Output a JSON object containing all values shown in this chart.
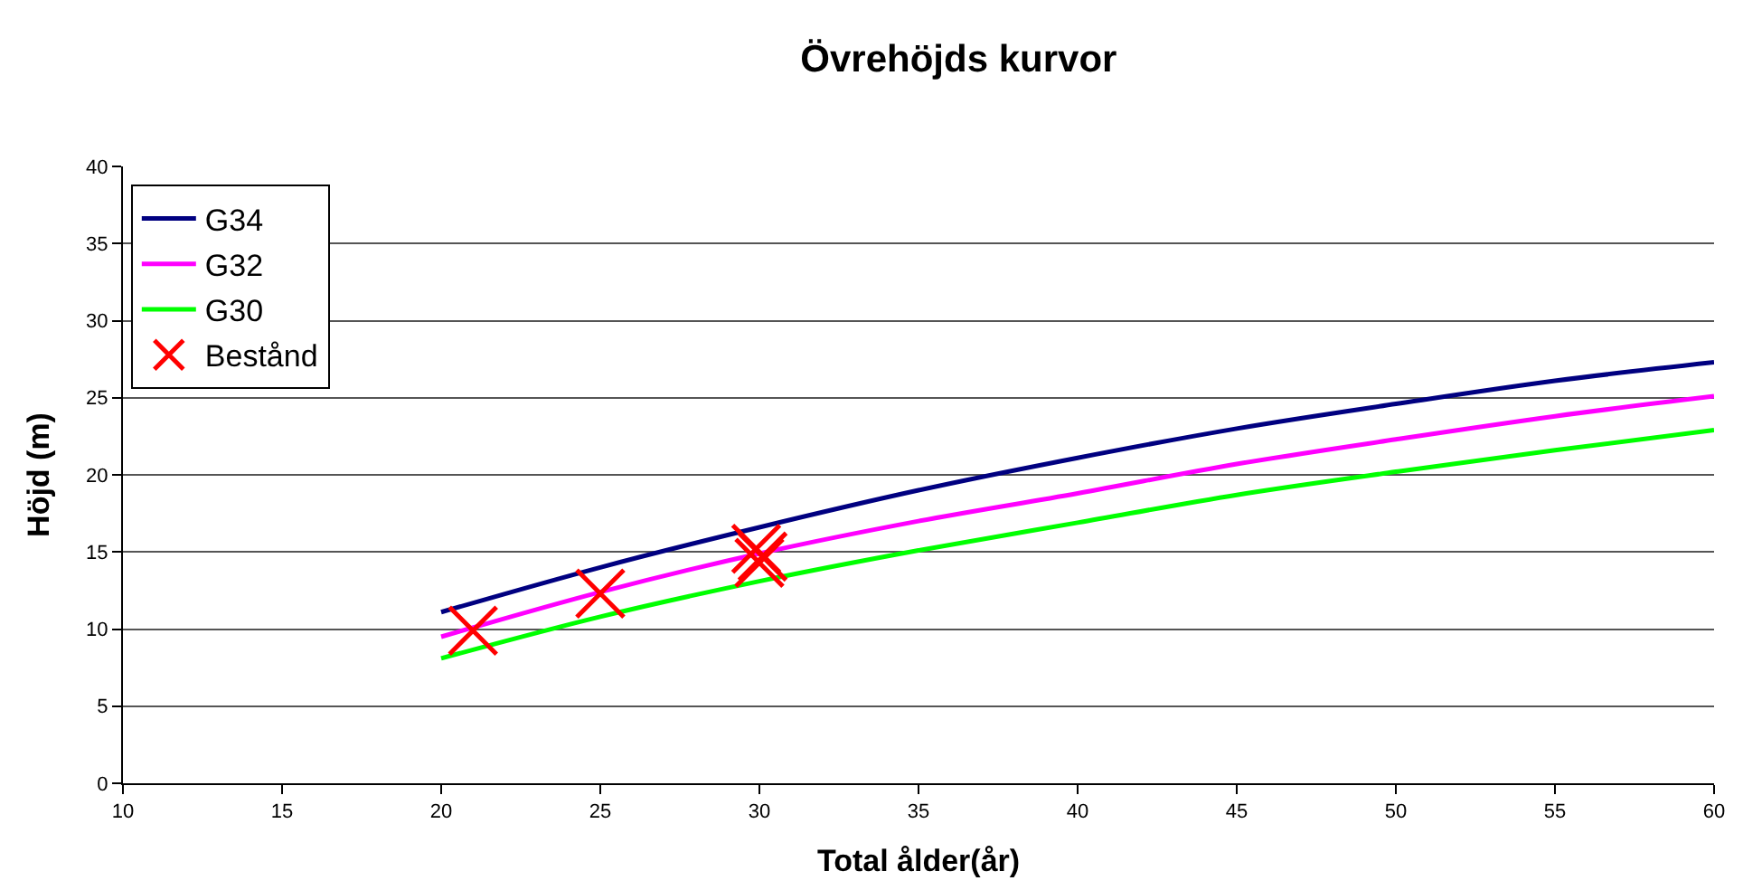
{
  "chart_data": {
    "type": "line",
    "title": "Övrehöjds kurvor",
    "xlabel": "Total ålder(år)",
    "ylabel": "Höjd (m)",
    "xlim": [
      10,
      60
    ],
    "xticks": [
      10,
      15,
      20,
      25,
      30,
      35,
      40,
      45,
      50,
      55,
      60
    ],
    "ylim": [
      0,
      40
    ],
    "yticks": [
      0,
      5,
      10,
      15,
      20,
      25,
      30,
      35,
      40
    ],
    "grid": "y",
    "legend": "top left",
    "marker": "none",
    "line_style": "solid",
    "series": [
      {
        "name": "G34",
        "color": "#000080",
        "x": [
          20,
          25,
          30,
          35,
          40,
          45,
          50,
          55,
          60
        ],
        "values": [
          11.1,
          14.0,
          16.6,
          19.0,
          21.1,
          23.0,
          24.6,
          26.1,
          27.3
        ]
      },
      {
        "name": "G32",
        "color": "#ff00ff",
        "x": [
          20,
          25,
          30,
          35,
          40,
          45,
          50,
          55,
          60
        ],
        "values": [
          9.5,
          12.4,
          14.9,
          17.0,
          18.8,
          20.7,
          22.3,
          23.8,
          25.1
        ]
      },
      {
        "name": "G30",
        "color": "#00ff00",
        "x": [
          20,
          25,
          30,
          35,
          40,
          45,
          50,
          55,
          60
        ],
        "values": [
          8.1,
          10.8,
          13.1,
          15.1,
          16.9,
          18.7,
          20.2,
          21.6,
          22.9
        ]
      },
      {
        "name": "Bestånd",
        "type": "scatter",
        "marker": "cross",
        "color": "#ff0000",
        "x": [
          21,
          25,
          29.9,
          30.1,
          30.0
        ],
        "values": [
          9.9,
          12.3,
          15.2,
          14.7,
          14.3
        ]
      }
    ]
  }
}
